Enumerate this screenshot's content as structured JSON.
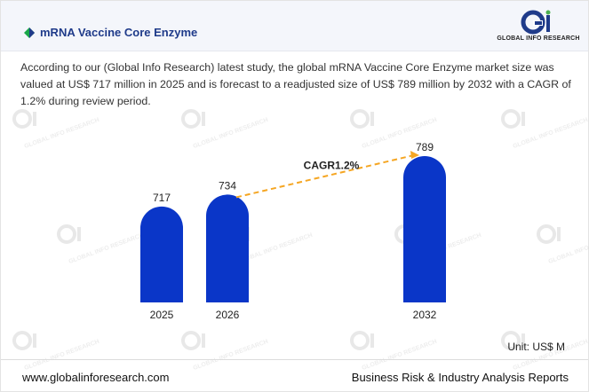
{
  "header": {
    "title": "mRNA Vaccine Core Enzyme",
    "logo_text": "GLOBAL INFO RESEARCH",
    "accent_color": "#1f3b8a",
    "logo_green": "#4caf50"
  },
  "description": "According to our (Global Info Research) latest study, the global mRNA Vaccine Core Enzyme market size was valued at US$ 717 million in 2025 and is forecast to a readjusted size of US$ 789 million by 2032 with a CAGR of 1.2% during review period.",
  "chart_data": {
    "type": "bar",
    "categories": [
      "2025",
      "2026",
      "2032"
    ],
    "values": [
      717,
      734,
      789
    ],
    "bar_color": "#0a36c8",
    "annotation": {
      "text": "CAGR1.2%",
      "from": "2026",
      "to": "2032",
      "color": "#f5a623"
    },
    "unit": "Unit: US$ M"
  },
  "footer": {
    "website": "www.globalinforesearch.com",
    "tagline": "Business Risk & Industry Analysis Reports"
  },
  "watermark_text": "GLOBAL INFO RESEARCH"
}
